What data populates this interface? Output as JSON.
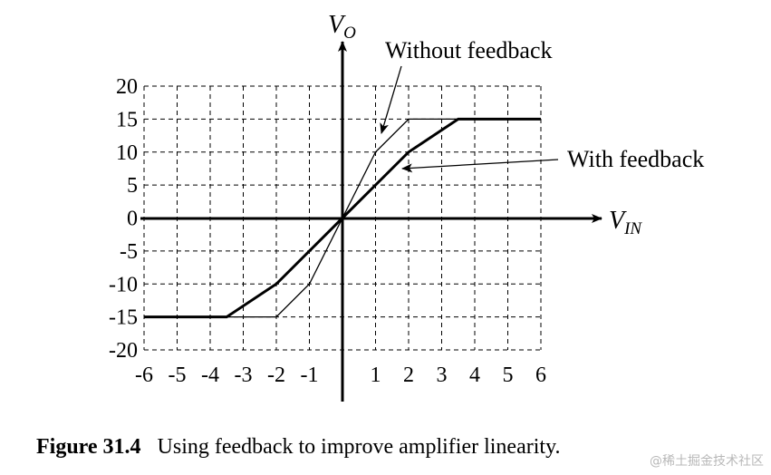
{
  "chart_data": {
    "type": "line",
    "xlabel": "V",
    "xlabel_sub": "IN",
    "ylabel": "V",
    "ylabel_sub": "O",
    "xlim": [
      -6,
      6
    ],
    "ylim": [
      -20,
      20
    ],
    "xticks": [
      -6,
      -5,
      -4,
      -3,
      -2,
      -1,
      1,
      2,
      3,
      4,
      5,
      6
    ],
    "yticks": [
      20,
      15,
      10,
      5,
      0,
      -5,
      -10,
      -15,
      -20
    ],
    "grid": true,
    "series": [
      {
        "name": "Without feedback",
        "x": [
          -6,
          -2,
          -1,
          1,
          2,
          6
        ],
        "y": [
          -15,
          -15,
          -10,
          10,
          15,
          15
        ]
      },
      {
        "name": "With feedback",
        "x": [
          -6,
          -3.5,
          -2,
          2,
          3.5,
          6
        ],
        "y": [
          -15,
          -15,
          -10,
          10,
          15,
          15
        ]
      }
    ],
    "annotations": [
      {
        "text": "Without feedback",
        "points_to_series": 0
      },
      {
        "text": "With feedback",
        "points_to_series": 1
      }
    ]
  },
  "caption": {
    "number": "Figure 31.4",
    "text": "Using feedback to improve amplifier linearity."
  },
  "watermark": "@稀土掘金技术社区"
}
